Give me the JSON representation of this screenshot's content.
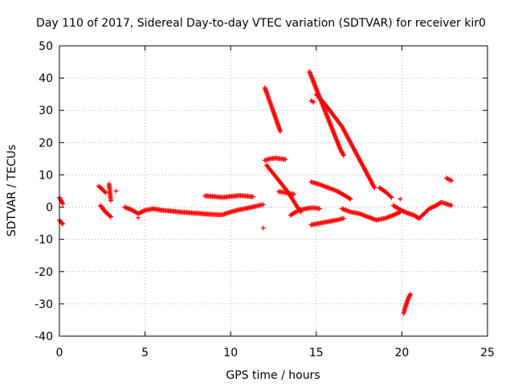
{
  "chart_data": {
    "type": "scatter",
    "title": "Day 110 of 2017, Sidereal Day-to-day VTEC variation (SDTVAR) for receiver kir0",
    "xlabel": "GPS time / hours",
    "ylabel": "SDTVAR / TECUs",
    "xlim": [
      0,
      25
    ],
    "ylim": [
      -40,
      50
    ],
    "xticks": [
      "0",
      "5",
      "10",
      "15",
      "20",
      "25"
    ],
    "yticks": [
      "-40",
      "-30",
      "-20",
      "-10",
      "0",
      "10",
      "20",
      "30",
      "40",
      "50"
    ],
    "grid": true,
    "marker": "plus",
    "color": "#ff0000",
    "segments": [
      [
        [
          0.0,
          3.0
        ],
        [
          0.1,
          2.0
        ],
        [
          0.2,
          1.0
        ]
      ],
      [
        [
          0.0,
          -4.0
        ],
        [
          0.1,
          -4.8
        ],
        [
          0.2,
          -5.2
        ]
      ],
      [
        [
          2.3,
          6.5
        ],
        [
          2.5,
          5.5
        ],
        [
          2.7,
          4.5
        ]
      ],
      [
        [
          2.4,
          0.5
        ],
        [
          2.6,
          -1.0
        ],
        [
          2.8,
          -2.0
        ],
        [
          3.0,
          -3.0
        ]
      ],
      [
        [
          2.9,
          7.2
        ],
        [
          3.0,
          2.0
        ]
      ],
      [
        [
          3.3,
          5.0
        ]
      ],
      [
        [
          3.8,
          0.0
        ],
        [
          4.2,
          -0.8
        ],
        [
          4.6,
          -2.0
        ],
        [
          5.0,
          -1.0
        ],
        [
          5.5,
          -0.5
        ],
        [
          6.0,
          -1.0
        ],
        [
          6.5,
          -1.2
        ],
        [
          7.0,
          -1.5
        ],
        [
          7.5,
          -1.7
        ],
        [
          8.0,
          -1.9
        ],
        [
          8.5,
          -2.1
        ],
        [
          9.0,
          -2.3
        ],
        [
          9.5,
          -2.4
        ],
        [
          10.0,
          -1.5
        ],
        [
          10.5,
          -0.8
        ],
        [
          11.0,
          -0.3
        ],
        [
          11.5,
          0.3
        ],
        [
          11.9,
          0.8
        ]
      ],
      [
        [
          4.6,
          -3.3
        ]
      ],
      [
        [
          8.5,
          3.5
        ],
        [
          9.0,
          3.3
        ],
        [
          9.5,
          3.0
        ],
        [
          10.0,
          3.3
        ],
        [
          10.5,
          3.6
        ],
        [
          11.0,
          3.4
        ],
        [
          11.3,
          3.2
        ]
      ],
      [
        [
          11.9,
          -6.5
        ]
      ],
      [
        [
          12.0,
          37.0
        ],
        [
          12.2,
          34.0
        ],
        [
          12.4,
          31.0
        ],
        [
          12.6,
          28.0
        ],
        [
          12.8,
          25.0
        ],
        [
          12.9,
          23.5
        ]
      ],
      [
        [
          12.0,
          14.5
        ],
        [
          12.3,
          15.0
        ],
        [
          12.6,
          15.2
        ],
        [
          12.9,
          15.0
        ],
        [
          13.2,
          14.8
        ]
      ],
      [
        [
          12.1,
          13.0
        ],
        [
          12.4,
          11.0
        ],
        [
          12.7,
          9.0
        ],
        [
          13.0,
          7.0
        ],
        [
          13.3,
          5.0
        ],
        [
          13.6,
          2.5
        ],
        [
          13.9,
          0.0
        ],
        [
          14.1,
          -1.5
        ]
      ],
      [
        [
          12.8,
          4.8
        ],
        [
          13.1,
          4.6
        ],
        [
          13.4,
          4.2
        ],
        [
          13.7,
          4.0
        ]
      ],
      [
        [
          13.5,
          -2.5
        ],
        [
          13.8,
          -1.5
        ],
        [
          14.1,
          -0.8
        ],
        [
          14.4,
          -0.5
        ],
        [
          14.6,
          -0.3
        ],
        [
          14.9,
          -0.2
        ],
        [
          15.2,
          -0.5
        ]
      ],
      [
        [
          14.6,
          42.0
        ],
        [
          14.9,
          38.0
        ],
        [
          15.2,
          34.0
        ],
        [
          15.5,
          30.0
        ],
        [
          15.8,
          26.0
        ],
        [
          16.1,
          22.0
        ],
        [
          16.4,
          18.0
        ],
        [
          16.6,
          16.0
        ]
      ],
      [
        [
          14.7,
          33.0
        ],
        [
          14.85,
          32.5
        ]
      ],
      [
        [
          15.0,
          35.0
        ],
        [
          15.5,
          32.0
        ],
        [
          16.0,
          28.5
        ],
        [
          16.5,
          25.0
        ],
        [
          17.0,
          20.0
        ],
        [
          17.5,
          15.0
        ],
        [
          18.0,
          10.0
        ],
        [
          18.4,
          6.0
        ]
      ],
      [
        [
          14.7,
          7.8
        ],
        [
          15.2,
          7.0
        ],
        [
          15.7,
          6.0
        ],
        [
          16.2,
          5.0
        ],
        [
          16.7,
          3.5
        ],
        [
          17.0,
          2.5
        ]
      ],
      [
        [
          14.7,
          -5.5
        ],
        [
          15.2,
          -5.0
        ],
        [
          15.7,
          -4.5
        ],
        [
          16.2,
          -4.0
        ],
        [
          16.6,
          -3.5
        ]
      ],
      [
        [
          16.5,
          -0.5
        ],
        [
          17.0,
          -1.5
        ],
        [
          17.5,
          -2.0
        ],
        [
          18.0,
          -3.0
        ],
        [
          18.5,
          -4.0
        ],
        [
          19.0,
          -3.5
        ],
        [
          19.5,
          -2.5
        ],
        [
          19.9,
          -1.5
        ]
      ],
      [
        [
          18.7,
          6.0
        ],
        [
          19.1,
          4.5
        ],
        [
          19.4,
          3.0
        ]
      ],
      [
        [
          19.5,
          0.5
        ],
        [
          19.9,
          -0.8
        ],
        [
          20.3,
          -1.8
        ],
        [
          20.7,
          -2.5
        ],
        [
          21.0,
          -3.5
        ],
        [
          21.3,
          -2.0
        ],
        [
          21.6,
          -0.5
        ],
        [
          22.0,
          0.5
        ],
        [
          22.3,
          1.5
        ],
        [
          22.6,
          1.0
        ],
        [
          22.9,
          0.5
        ]
      ],
      [
        [
          19.9,
          2.5
        ]
      ],
      [
        [
          20.1,
          -33.0
        ],
        [
          20.2,
          -31.0
        ],
        [
          20.3,
          -29.5
        ],
        [
          20.4,
          -28.0
        ],
        [
          20.5,
          -27.0
        ]
      ],
      [
        [
          22.6,
          9.0
        ],
        [
          22.9,
          8.2
        ]
      ]
    ]
  }
}
